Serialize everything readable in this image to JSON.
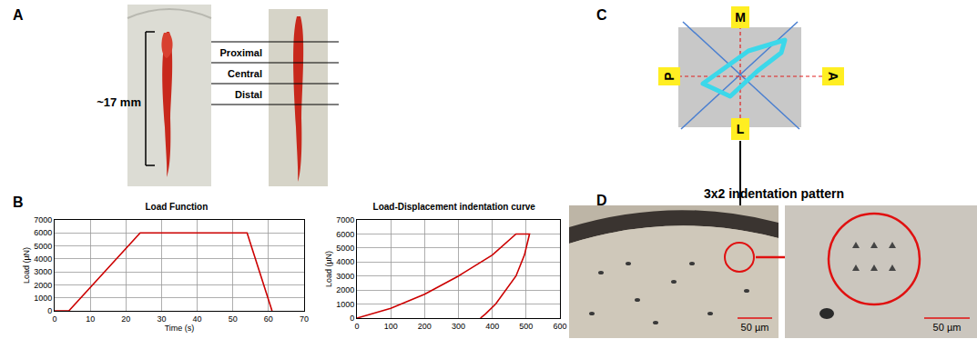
{
  "panel_labels": [
    "A",
    "B",
    "C",
    "D"
  ],
  "panel_A": {
    "length_label": "~17 mm",
    "regions": [
      "Proximal",
      "Central",
      "Distal"
    ]
  },
  "chart_data": [
    {
      "type": "line",
      "title": "Load Function",
      "x": [
        0,
        4,
        24,
        54,
        61
      ],
      "values": [
        0,
        0,
        6000,
        6000,
        0
      ],
      "color": "#cc0000",
      "xlabel": "Time (s)",
      "ylabel": "Load (µN)",
      "xlim": [
        0,
        70
      ],
      "xticks": [
        0,
        10,
        20,
        30,
        40,
        50,
        60,
        70
      ],
      "ylim": [
        0,
        7000
      ],
      "yticks": [
        0,
        1000,
        2000,
        3000,
        4000,
        5000,
        6000,
        7000
      ],
      "grid": true
    },
    {
      "type": "line",
      "title": "Load-Displacement indentation curve",
      "x": [
        0,
        100,
        200,
        300,
        400,
        470,
        510,
        495,
        470,
        440,
        410,
        380,
        365
      ],
      "values": [
        0,
        700,
        1700,
        3000,
        4500,
        6000,
        6000,
        4500,
        3000,
        2000,
        1000,
        300,
        0
      ],
      "color": "#cc0000",
      "ylabel": "Load (µN)",
      "xlim": [
        0,
        600
      ],
      "xticks": [
        0,
        100,
        200,
        300,
        400,
        500,
        600
      ],
      "ylim": [
        0,
        7000
      ],
      "yticks": [
        0,
        1000,
        2000,
        3000,
        4000,
        5000,
        6000,
        7000
      ],
      "grid": true
    }
  ],
  "panel_C": {
    "directions": {
      "top": "M",
      "bottom": "L",
      "left": "P",
      "right": "A"
    }
  },
  "panel_D": {
    "title": "3x2 indentation pattern",
    "scale_bars": [
      "50 µm",
      "50 µm"
    ]
  }
}
